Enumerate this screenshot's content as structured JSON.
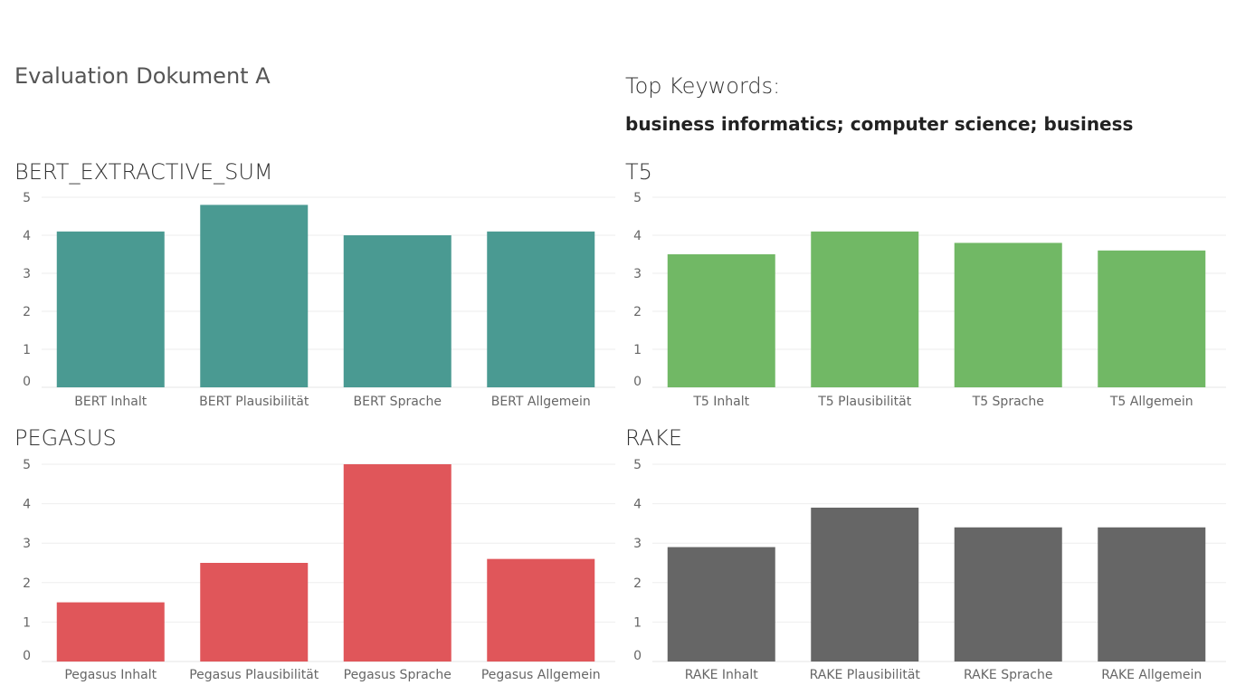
{
  "dashboard": {
    "title": "Evaluation Dokument A",
    "keywords_heading": "Top Keywords:",
    "keywords": "business informatics; computer science;  business"
  },
  "chart_data": [
    {
      "type": "bar",
      "title": "BERT_EXTRACTIVE_SUM",
      "categories": [
        "BERT Inhalt",
        "BERT Plausibilität",
        "BERT Sprache",
        "BERT Allgemein"
      ],
      "values": [
        4.1,
        4.8,
        4.0,
        4.1
      ],
      "ylim": [
        0,
        5
      ],
      "yticks": [
        0,
        1,
        2,
        3,
        4,
        5
      ],
      "color": "#4a9a92"
    },
    {
      "type": "bar",
      "title": "T5",
      "categories": [
        "T5 Inhalt",
        "T5 Plausibilität",
        "T5 Sprache",
        "T5 Allgemein"
      ],
      "values": [
        3.5,
        4.1,
        3.8,
        3.6
      ],
      "ylim": [
        0,
        5
      ],
      "yticks": [
        0,
        1,
        2,
        3,
        4,
        5
      ],
      "color": "#71b865"
    },
    {
      "type": "bar",
      "title": "PEGASUS",
      "categories": [
        "Pegasus Inhalt",
        "Pegasus Plausibilität",
        "Pegasus Sprache",
        "Pegasus Allgemein"
      ],
      "values": [
        1.5,
        2.5,
        5.0,
        2.6
      ],
      "ylim": [
        0,
        5
      ],
      "yticks": [
        0,
        1,
        2,
        3,
        4,
        5
      ],
      "color": "#e0565a"
    },
    {
      "type": "bar",
      "title": "RAKE",
      "categories": [
        "RAKE Inhalt",
        "RAKE Plausibilität",
        "RAKE Sprache",
        "RAKE Allgemein"
      ],
      "values": [
        2.9,
        3.9,
        3.4,
        3.4
      ],
      "ylim": [
        0,
        5
      ],
      "yticks": [
        0,
        1,
        2,
        3,
        4,
        5
      ],
      "color": "#666666"
    }
  ]
}
